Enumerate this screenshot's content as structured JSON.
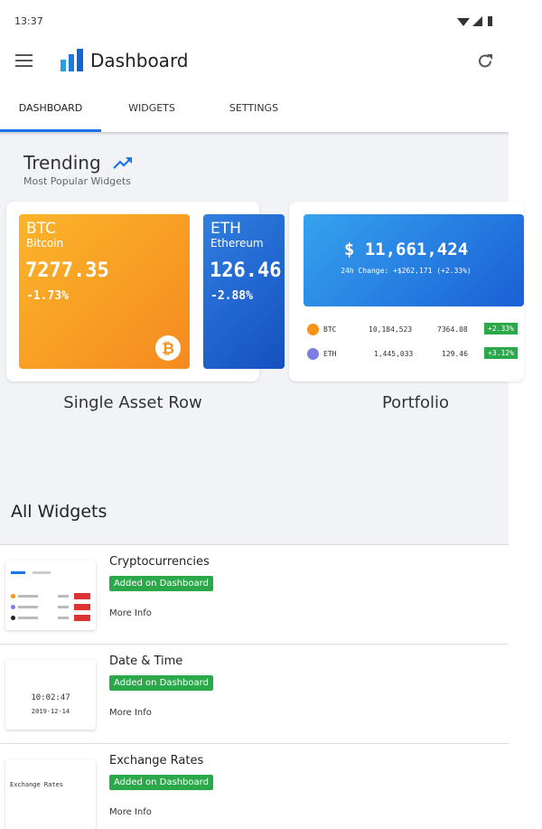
{
  "status_bar": {
    "time": "13:37"
  },
  "app_bar": {
    "title": "Dashboard"
  },
  "tabs": [
    "DASHBOARD",
    "WIDGETS",
    "SETTINGS"
  ],
  "trending": {
    "title": "Trending",
    "subtitle": "Most Popular Widgets",
    "single_asset": {
      "label": "Single Asset Row",
      "assets": [
        {
          "symbol": "BTC",
          "name": "Bitcoin",
          "price": "7277.35",
          "change": "-1.73%"
        },
        {
          "symbol": "ETH",
          "name": "Ethereum",
          "price": "126.46",
          "change": "-2.88%"
        }
      ]
    },
    "portfolio": {
      "label": "Portfolio",
      "total": "$ 11,661,424",
      "change": "24h Change: +$262,171 (+2.33%)",
      "rows": [
        {
          "symbol": "BTC",
          "value": "10,184,523",
          "price": "7364.08",
          "change": "+2.33%"
        },
        {
          "symbol": "ETH",
          "value": "1,445,033",
          "price": "129.46",
          "change": "+3.12%"
        }
      ]
    }
  },
  "all_widgets": {
    "title": "All Widgets",
    "items": [
      {
        "title": "Cryptocurrencies",
        "badge": "Added on Dashboard",
        "link": "More Info"
      },
      {
        "title": "Date & Time",
        "badge": "Added on Dashboard",
        "link": "More Info",
        "preview": [
          "10:02:47",
          "2019-12-14"
        ]
      },
      {
        "title": "Exchange Rates",
        "badge": "Added on Dashboard",
        "link": "More Info",
        "preview": [
          "Exchange Rates"
        ]
      }
    ]
  }
}
